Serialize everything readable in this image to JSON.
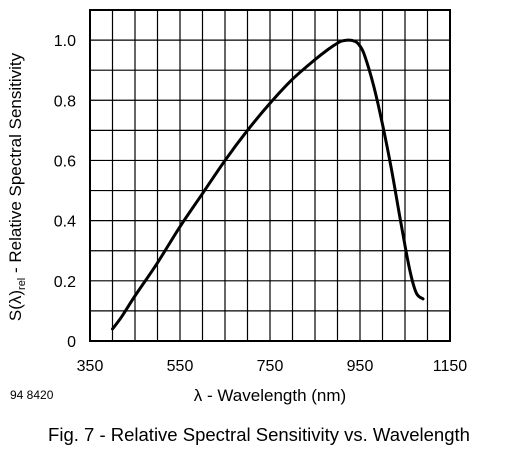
{
  "chart_data": {
    "type": "line",
    "title": "",
    "xlabel": "λ - Wavelength (nm)",
    "ylabel_main": "S(λ)",
    "ylabel_sub": "rel",
    "ylabel_rest": " - Relative Spectral Sensitivity",
    "xlim": [
      350,
      1150
    ],
    "ylim": [
      0,
      1.1
    ],
    "x_ticks": [
      350,
      550,
      750,
      950,
      1150
    ],
    "x_tick_labels": [
      "350",
      "550",
      "750",
      "950",
      "1150"
    ],
    "y_ticks": [
      0,
      0.2,
      0.4,
      0.6,
      0.8,
      1.0
    ],
    "y_tick_labels": [
      "0",
      "0.2",
      "0.4",
      "0.6",
      "0.8",
      "1.0"
    ],
    "x_grid_step": 50,
    "y_grid_step": 0.1,
    "grid": true,
    "series": [
      {
        "x": [
          400,
          420,
          450,
          500,
          550,
          600,
          650,
          700,
          750,
          800,
          850,
          880,
          900,
          910,
          925,
          940,
          950,
          960,
          980,
          1000,
          1020,
          1040,
          1060,
          1075,
          1090
        ],
        "y": [
          0.04,
          0.08,
          0.15,
          0.26,
          0.38,
          0.49,
          0.6,
          0.7,
          0.79,
          0.87,
          0.935,
          0.97,
          0.99,
          0.997,
          1.0,
          0.995,
          0.98,
          0.95,
          0.85,
          0.72,
          0.57,
          0.4,
          0.24,
          0.16,
          0.14
        ]
      }
    ]
  },
  "figure_id": "94 8420",
  "caption": "Fig. 7 - Relative Spectral Sensitivity vs. Wavelength"
}
